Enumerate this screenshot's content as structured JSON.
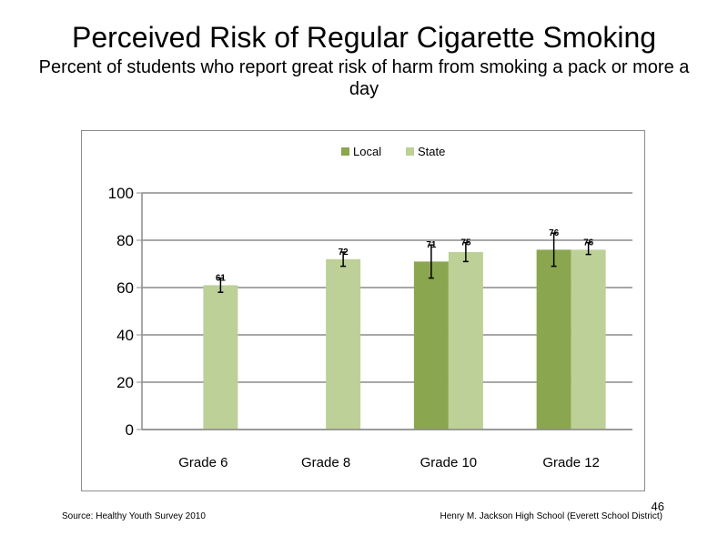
{
  "slide": {
    "title": "Perceived  Risk of Regular  Cigarette  Smoking",
    "subtitle": "Percent  of students  who report great risk of harm from smoking a pack or more a day",
    "source": "Source: Healthy  Youth Survey 2010",
    "organization": "Henry M.  Jackson High  School  (Everett School District)",
    "page_number": "46"
  },
  "chart_data": {
    "type": "bar",
    "categories": [
      "Grade 6",
      "Grade 8",
      "Grade 10",
      "Grade 12"
    ],
    "series": [
      {
        "name": "Local",
        "color": "#8aa64f",
        "values": [
          null,
          null,
          71,
          76
        ],
        "labels": [
          "",
          "",
          "71",
          "76"
        ],
        "error_low": [
          null,
          null,
          64,
          69
        ],
        "error_high": [
          null,
          null,
          78,
          83
        ]
      },
      {
        "name": "State",
        "color": "#bdd097",
        "values": [
          61,
          72,
          75,
          76
        ],
        "labels": [
          "61",
          "72",
          "75",
          "76"
        ],
        "error_low": [
          58,
          69,
          71,
          74
        ],
        "error_high": [
          64,
          75,
          79,
          79
        ]
      }
    ],
    "ylim": [
      0,
      100
    ],
    "yticks": [
      "0",
      "20",
      "40",
      "60",
      "80",
      "100"
    ],
    "grid": true,
    "legend_position": "top"
  }
}
